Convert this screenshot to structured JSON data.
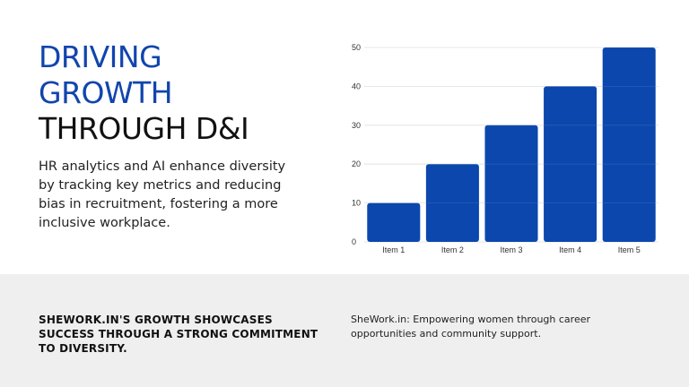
{
  "title": {
    "line1": "DRIVING",
    "line2": "GROWTH",
    "line3": "THROUGH D&I"
  },
  "description": "HR analytics and AI enhance diversity by tracking key metrics and reducing bias in recruitment, fostering a more inclusive workplace.",
  "footer": {
    "left_text": "SHEWORK.IN'S GROWTH SHOWCASES SUCCESS THROUGH A STRONG COMMITMENT TO DIVERSITY.",
    "right_text": "SheWork.in: Empowering women through career opportunities and community support."
  },
  "colors": {
    "accent": "#1145ad",
    "bar": "#0b47ad",
    "footer_background": "#efefef"
  },
  "chart_data": {
    "type": "bar",
    "categories": [
      "Item 1",
      "Item 2",
      "Item 3",
      "Item 4",
      "Item 5"
    ],
    "values": [
      10,
      20,
      30,
      40,
      50
    ],
    "ylim": [
      0,
      50
    ],
    "yticks": [
      0,
      10,
      20,
      30,
      40,
      50
    ],
    "grid": true,
    "title": "",
    "xlabel": "",
    "ylabel": ""
  }
}
